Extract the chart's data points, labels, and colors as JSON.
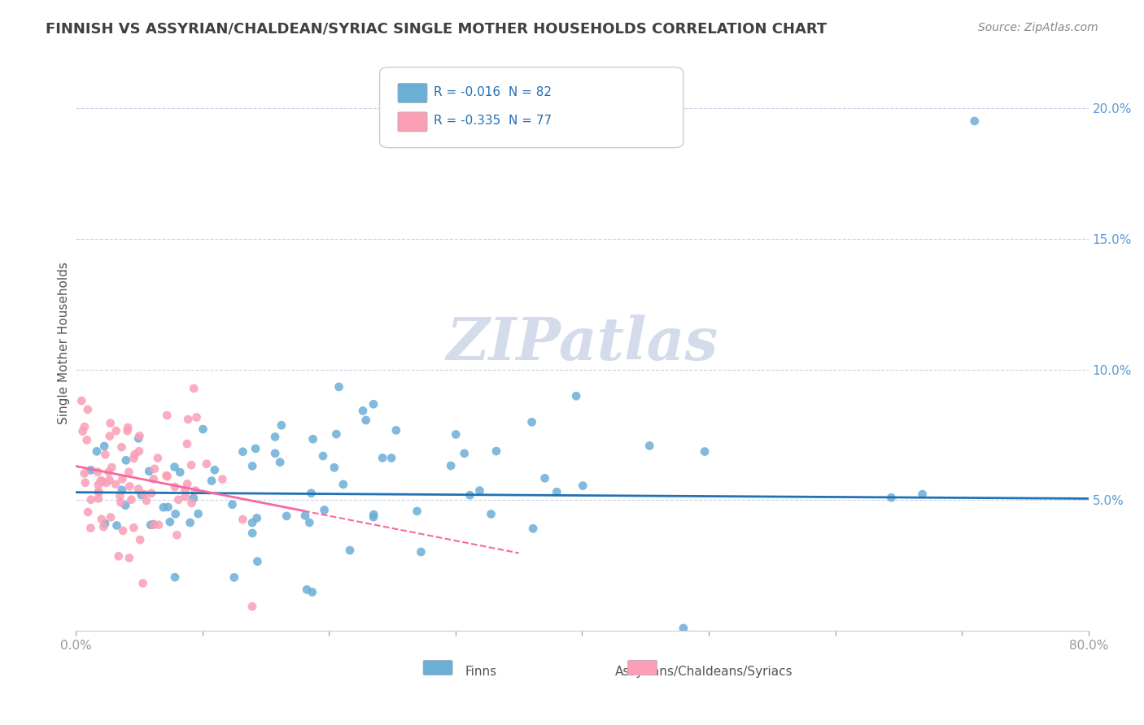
{
  "title": "FINNISH VS ASSYRIAN/CHALDEAN/SYRIAC SINGLE MOTHER HOUSEHOLDS CORRELATION CHART",
  "source": "Source: ZipAtlas.com",
  "ylabel": "Single Mother Households",
  "xlabel": "",
  "xlim": [
    0.0,
    0.8
  ],
  "ylim": [
    0.0,
    0.22
  ],
  "yticks": [
    0.0,
    0.05,
    0.1,
    0.15,
    0.2
  ],
  "ytick_labels": [
    "",
    "5.0%",
    "10.0%",
    "15.0%",
    "20.0%"
  ],
  "xticks": [
    0.0,
    0.1,
    0.2,
    0.3,
    0.4,
    0.5,
    0.6,
    0.7,
    0.8
  ],
  "xtick_labels": [
    "0.0%",
    "",
    "",
    "",
    "",
    "",
    "",
    "",
    "80.0%"
  ],
  "legend_r1": "R = -0.016  N = 82",
  "legend_r2": "R = -0.335  N = 77",
  "legend_label1": "Finns",
  "legend_label2": "Assyrians/Chaldeans/Syriacs",
  "blue_color": "#6baed6",
  "pink_color": "#fa9fb5",
  "blue_line_color": "#2171b5",
  "pink_line_color": "#f768a1",
  "title_color": "#404040",
  "axis_label_color": "#5b9bd5",
  "watermark_color": "#d0d8e8",
  "background_color": "#ffffff",
  "grid_color": "#c8d4e8",
  "blue_r": -0.016,
  "blue_n": 82,
  "pink_r": -0.335,
  "pink_n": 77,
  "blue_intercept": 0.053,
  "blue_slope": -0.003,
  "pink_intercept": 0.063,
  "pink_slope": -0.095
}
